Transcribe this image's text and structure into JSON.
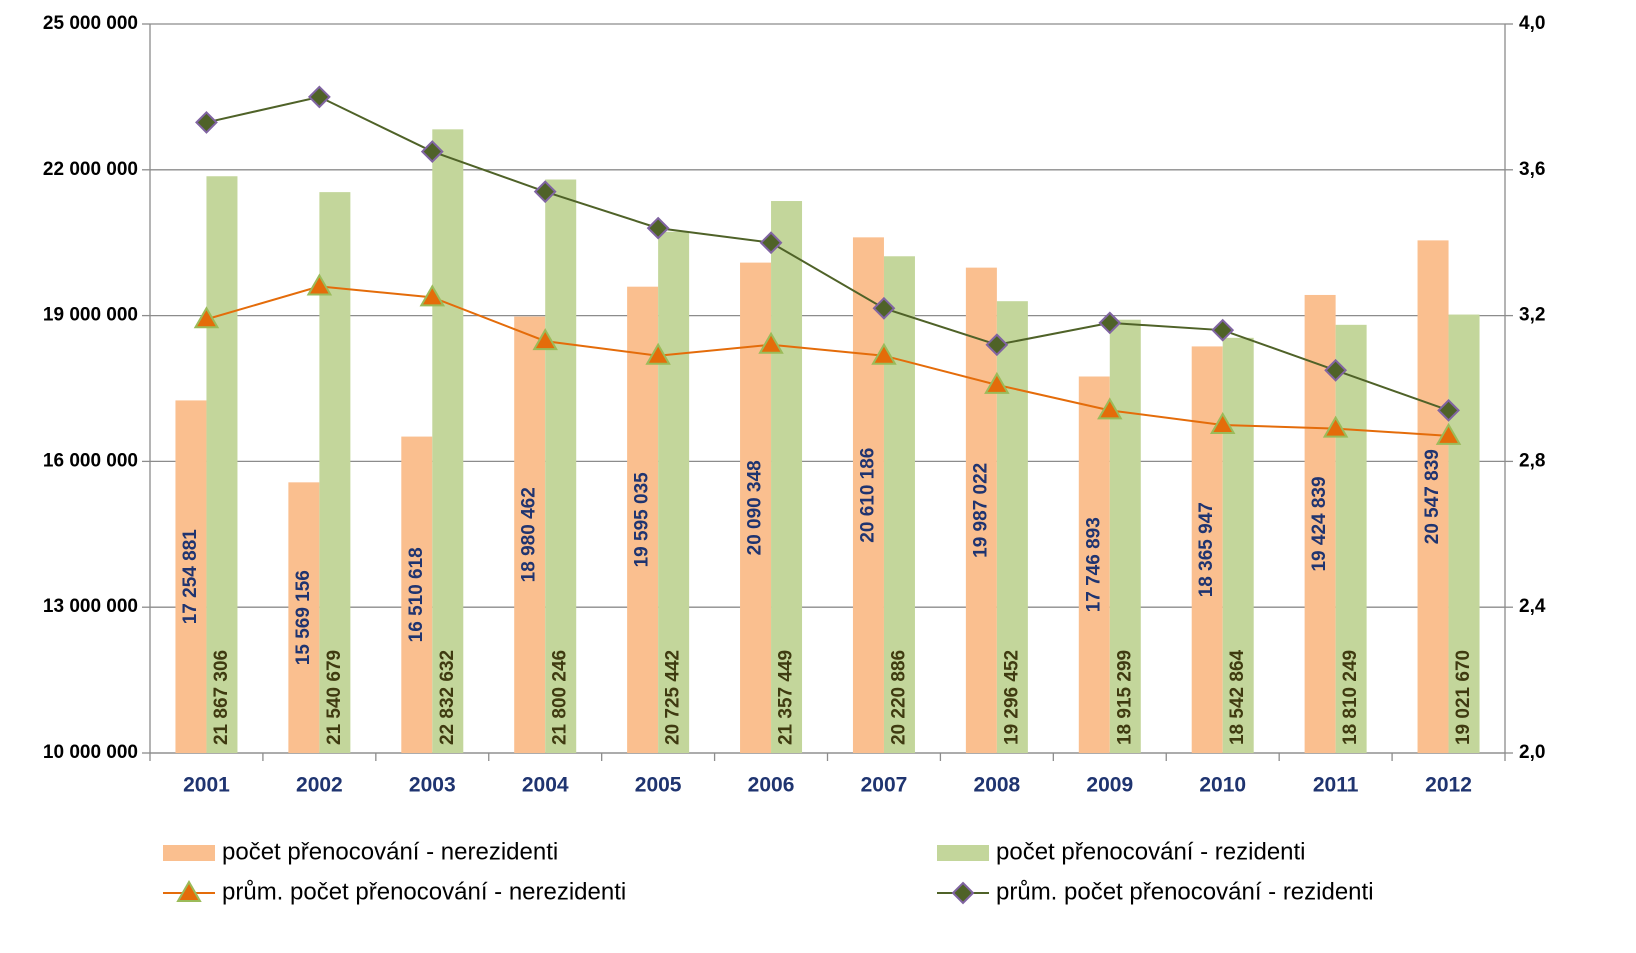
{
  "chart_data": {
    "type": "bar",
    "categories": [
      "2001",
      "2002",
      "2003",
      "2004",
      "2005",
      "2006",
      "2007",
      "2008",
      "2009",
      "2010",
      "2011",
      "2012"
    ],
    "series": [
      {
        "name": "počet přenocování - nerezidenti",
        "color": "#fabf8f",
        "label_color": "#1f3470",
        "values": [
          17254881,
          15569156,
          16510618,
          18980462,
          19595035,
          20090348,
          20610186,
          19987022,
          17746893,
          18365947,
          19424839,
          20547839
        ],
        "value_labels": [
          "17 254 881",
          "15 569 156",
          "16 510 618",
          "18 980 462",
          "19 595 035",
          "20 090 348",
          "20 610 186",
          "19 987 022",
          "17 746 893",
          "18 365 947",
          "19 424 839",
          "20 547 839"
        ]
      },
      {
        "name": "počet přenocování - rezidenti",
        "color": "#c3d69b",
        "label_color": "#3f3a10",
        "values": [
          21867306,
          21540679,
          22832632,
          21800246,
          20725442,
          21357449,
          20220886,
          19296452,
          18915299,
          18542864,
          18810249,
          19021670
        ],
        "value_labels": [
          "21 867 306",
          "21 540 679",
          "22 832 632",
          "21 800 246",
          "20 725 442",
          "21 357 449",
          "20 220 886",
          "19 296 452",
          "18 915 299",
          "18 542 864",
          "18 810 249",
          "19 021 670"
        ]
      },
      {
        "name": "prům. počet přenocování - nerezidenti",
        "type": "line",
        "axis": "y2",
        "color": "#e46c0a",
        "marker": "triangle",
        "marker_color": "#e46c0a",
        "marker_edge": "#9bbb59",
        "values": [
          3.19,
          3.28,
          3.25,
          3.13,
          3.09,
          3.12,
          3.09,
          3.01,
          2.94,
          2.9,
          2.89,
          2.87
        ]
      },
      {
        "name": "prům. počet přenocování - rezidenti",
        "type": "line",
        "axis": "y2",
        "color": "#4f6228",
        "marker": "diamond",
        "marker_color": "#4f6228",
        "marker_edge": "#8064a2",
        "values": [
          3.73,
          3.8,
          3.65,
          3.54,
          3.44,
          3.4,
          3.22,
          3.12,
          3.18,
          3.16,
          3.05,
          2.94
        ]
      }
    ],
    "ylim": [
      10000000,
      25000000
    ],
    "yticks": [
      {
        "value": 10000000,
        "label": "10 000 000"
      },
      {
        "value": 13000000,
        "label": "13 000 000"
      },
      {
        "value": 16000000,
        "label": "16 000 000"
      },
      {
        "value": 19000000,
        "label": "19 000 000"
      },
      {
        "value": 22000000,
        "label": "22 000 000"
      },
      {
        "value": 25000000,
        "label": "25 000 000"
      }
    ],
    "y2lim": [
      2,
      4
    ],
    "y2ticks": [
      {
        "value": 2,
        "label": "2,0"
      },
      {
        "value": 2.4,
        "label": "2,4"
      },
      {
        "value": 2.8,
        "label": "2,8"
      },
      {
        "value": 3.2,
        "label": "3,2"
      },
      {
        "value": 3.6,
        "label": "3,6"
      },
      {
        "value": 4,
        "label": "4,0"
      }
    ],
    "grid": true,
    "legend": "bottom"
  }
}
